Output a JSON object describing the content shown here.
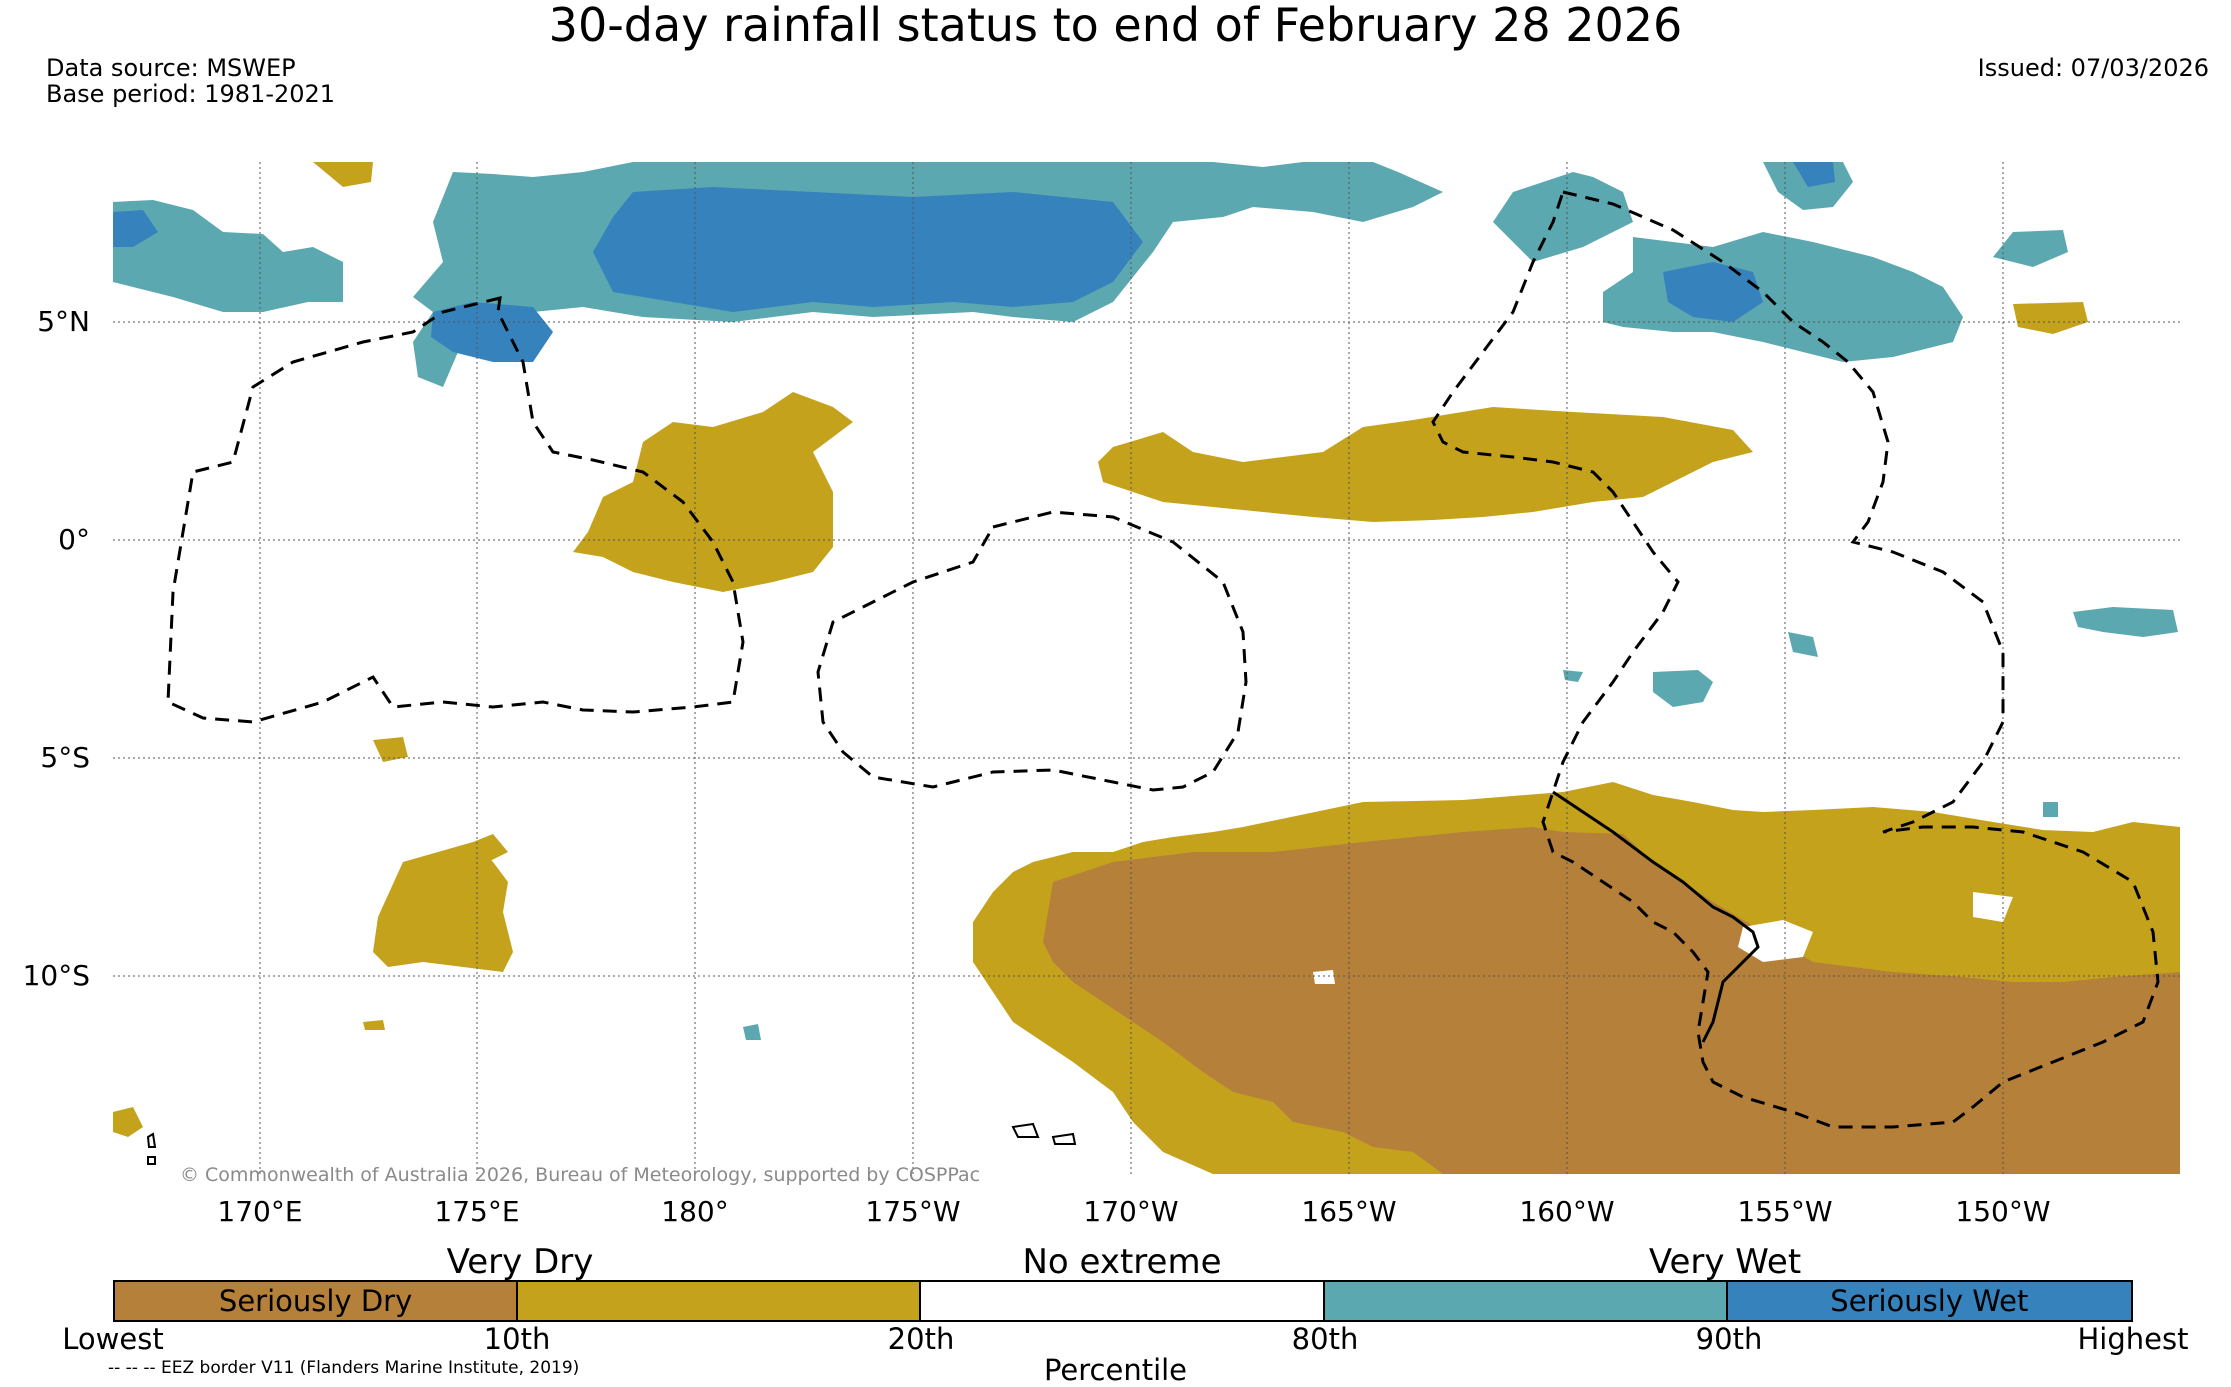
{
  "title": "30-day rainfall status to end of February 28 2026",
  "data_source": "Data source: MSWEP",
  "base_period": "Base period: 1981-2021",
  "issued": "Issued: 07/03/2026",
  "copyright": "© Commonwealth of Australia 2026, Bureau of Meteorology, supported by COSPPac",
  "eez_note": "-- -- -- EEZ border V11 (Flanders Marine Institute, 2019)",
  "lat_labels": [
    "5°N",
    "0°",
    "5°S",
    "10°S"
  ],
  "lon_labels": [
    "170°E",
    "175°E",
    "180°",
    "175°W",
    "170°W",
    "165°W",
    "160°W",
    "155°W",
    "150°W"
  ],
  "legend": {
    "categories": [
      "Very Dry",
      "No extreme",
      "Very Wet"
    ],
    "segments": [
      {
        "label": "Seriously Dry",
        "color": "#b5803a"
      },
      {
        "label": "",
        "color": "#c5a21c"
      },
      {
        "label": "",
        "color": "#ffffff"
      },
      {
        "label": "",
        "color": "#5ba8b0"
      },
      {
        "label": "Seriously Wet",
        "color": "#3582bd"
      }
    ],
    "ticks": [
      "Lowest",
      "10th",
      "20th",
      "80th",
      "90th",
      "Highest"
    ],
    "axis_title": "Percentile"
  },
  "colors": {
    "seriously_dry": "#b5803a",
    "very_dry": "#c5a21c",
    "very_wet": "#5ba8b0",
    "seriously_wet": "#3582bd"
  }
}
